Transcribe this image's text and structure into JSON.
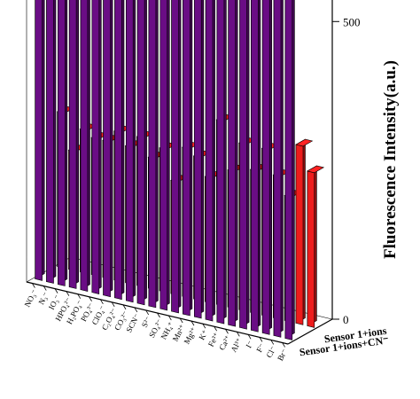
{
  "chart_data": {
    "type": "bar",
    "ylabel": "Fluorescence Intensity(a.u.)",
    "yticks": [
      "0",
      "500"
    ],
    "ylim": [
      0,
      700
    ],
    "categories": [
      "Br⁻",
      "Cl⁻",
      "F⁻",
      "I⁻",
      "Al³⁺",
      "Ca²⁺",
      "Fe³⁺",
      "K⁺",
      "Mg²⁺",
      "Mn²⁺",
      "NH₄⁺",
      "SO₄²⁻",
      "S²⁻",
      "SCN⁻",
      "CO₃²⁻",
      "C₂O₄²⁻",
      "ClO₄⁻",
      "PO₄³⁻",
      "H₂PO₄⁻",
      "HPO₄²⁻",
      "IO₃⁻",
      "N₃⁻",
      "NO₃⁻"
    ],
    "series": [
      {
        "name": "Sensor 1+ions",
        "color": "#6a0d85",
        "values": [
          730,
          700,
          690,
          610,
          650,
          620,
          700,
          600,
          600,
          640,
          630,
          630,
          650,
          600,
          640,
          590,
          590,
          570,
          600,
          560,
          540,
          570,
          530
        ]
      },
      {
        "name": "Sensor 1+ions+CN⁻",
        "color": "#ee1c1c",
        "values": [
          260,
          300,
          210,
          240,
          280,
          240,
          280,
          230,
          310,
          210,
          240,
          250,
          190,
          240,
          220,
          250,
          230,
          250,
          230,
          230,
          240,
          200,
          260
        ]
      }
    ]
  }
}
